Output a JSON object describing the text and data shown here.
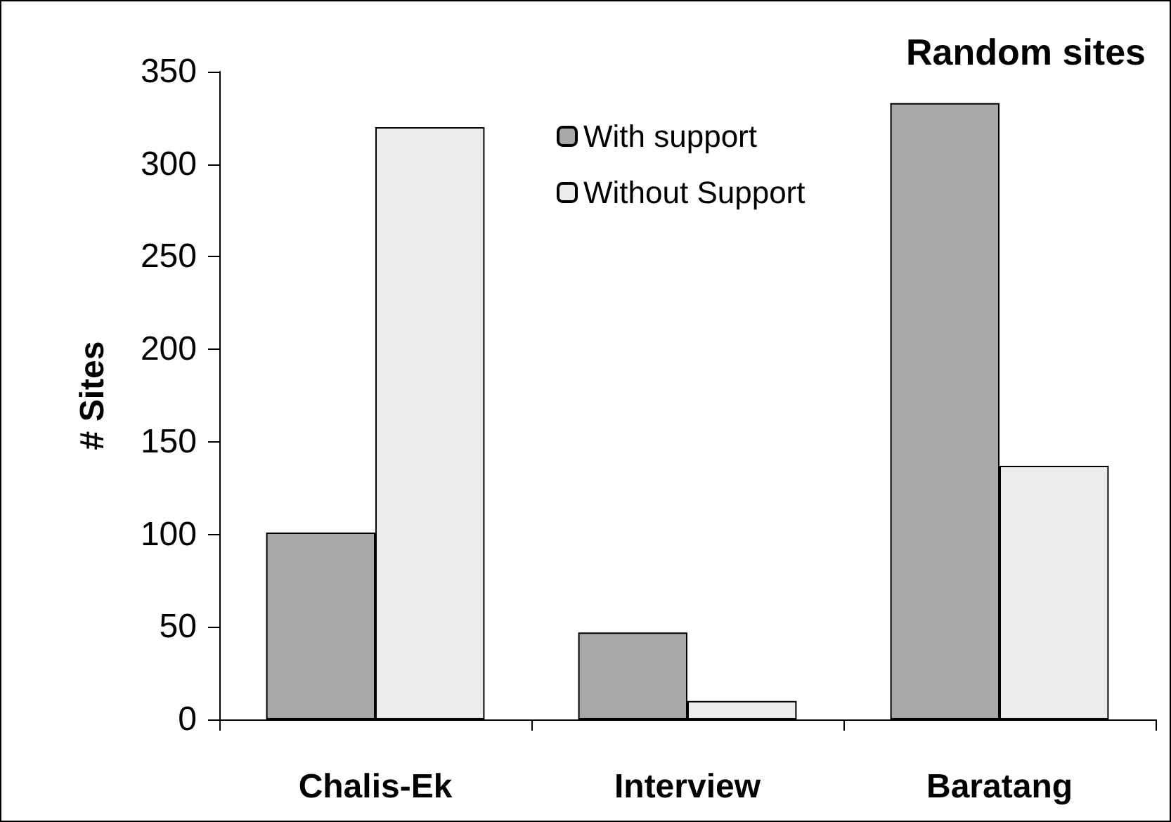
{
  "chart_data": {
    "type": "bar",
    "title": "Random sites",
    "ylabel": "# Sites",
    "categories": [
      "Chalis-Ek",
      "Interview",
      "Baratang"
    ],
    "series": [
      {
        "name": "With support",
        "color": "#a8a8a8",
        "values": [
          101,
          47,
          333
        ]
      },
      {
        "name": "Without Support",
        "color": "#ececec",
        "values": [
          320,
          10,
          137
        ]
      }
    ],
    "ylim": [
      0,
      350
    ],
    "yticks": [
      0,
      50,
      100,
      150,
      200,
      250,
      300,
      350
    ],
    "grid": false,
    "legend": "top right"
  }
}
